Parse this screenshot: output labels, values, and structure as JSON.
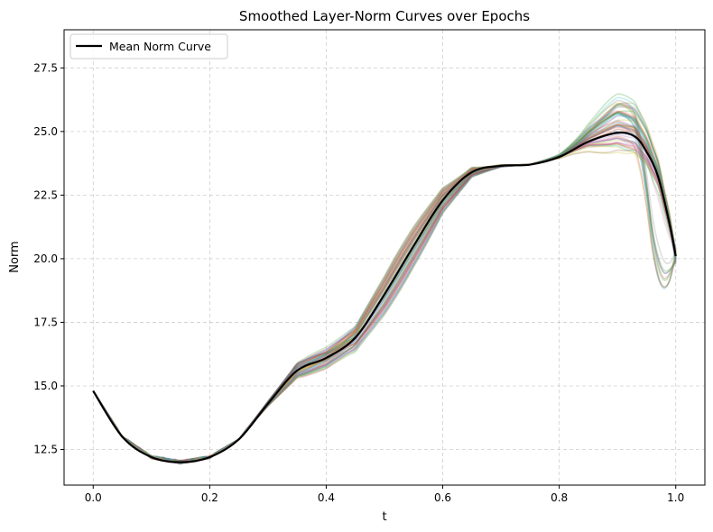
{
  "chart_data": {
    "type": "line",
    "title": "Smoothed Layer-Norm Curves over Epochs",
    "xlabel": "t",
    "ylabel": "Norm",
    "xlim": [
      -0.05,
      1.05
    ],
    "ylim": [
      11.1,
      29.0
    ],
    "xticks": [
      0.0,
      0.2,
      0.4,
      0.6,
      0.8,
      1.0
    ],
    "xtick_labels": [
      "0.0",
      "0.2",
      "0.4",
      "0.6",
      "0.8",
      "1.0"
    ],
    "yticks": [
      12.5,
      15.0,
      17.5,
      20.0,
      22.5,
      25.0,
      27.5
    ],
    "ytick_labels": [
      "12.5",
      "15.0",
      "17.5",
      "20.0",
      "22.5",
      "25.0",
      "27.5"
    ],
    "grid": true,
    "legend_position": "top-left",
    "mean_series": {
      "name": "Mean Norm Curve",
      "color": "#000000",
      "x": [
        0.0,
        0.05,
        0.1,
        0.15,
        0.2,
        0.25,
        0.3,
        0.35,
        0.4,
        0.45,
        0.5,
        0.55,
        0.6,
        0.65,
        0.7,
        0.75,
        0.8,
        0.85,
        0.9,
        0.93,
        0.95,
        0.97,
        0.99,
        1.0
      ],
      "y": [
        14.8,
        13.0,
        12.2,
        12.0,
        12.2,
        12.9,
        14.3,
        15.6,
        16.1,
        16.9,
        18.6,
        20.5,
        22.3,
        23.4,
        23.65,
        23.7,
        24.0,
        24.6,
        24.95,
        24.8,
        24.2,
        23.2,
        21.3,
        20.1
      ]
    },
    "background_series_note": "",
    "background_palette": [
      "#1f77b4",
      "#ff7f0e",
      "#2ca02c",
      "#d62728",
      "#9467bd",
      "#8c564b",
      "#e377c2",
      "#7f7f7f",
      "#bcbd22",
      "#17becf"
    ]
  }
}
